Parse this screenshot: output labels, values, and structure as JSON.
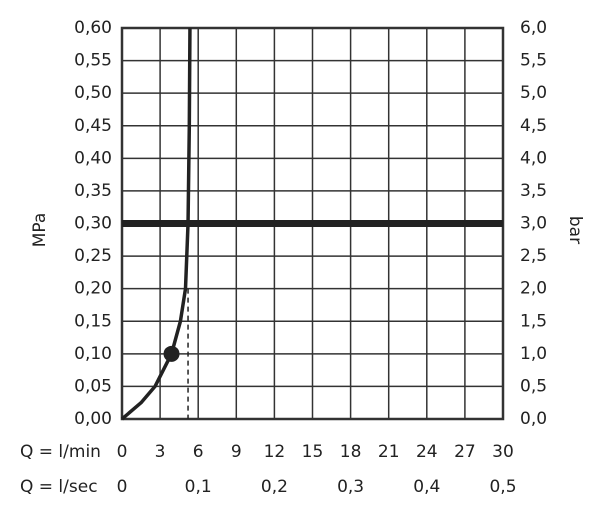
{
  "chart_data": {
    "type": "line",
    "x_label": "Q = l/min",
    "x2_label": "Q = l/sec",
    "y_label": "MPa",
    "y2_label": "bar",
    "x": [
      0,
      1.5,
      2.6,
      3.9,
      4.6,
      5.0,
      5.1,
      5.2,
      5.3,
      5.35
    ],
    "values": [
      0,
      0.025,
      0.05,
      0.1,
      0.15,
      0.2,
      0.25,
      0.3,
      0.45,
      0.6
    ],
    "color": "#222",
    "marker": {
      "x": 3.9,
      "y": 0.1
    },
    "reference_x": {
      "x": 5.2,
      "y": 0.2
    },
    "hline": 0.3,
    "xlim": [
      0,
      30
    ],
    "xticks": [
      0,
      3,
      6,
      9,
      12,
      15,
      18,
      21,
      24,
      27,
      30
    ],
    "x2lim": [
      0,
      0.5
    ],
    "x2ticks": [
      0,
      {
        "value": 0.1,
        "label": "0,1"
      },
      {
        "value": 0.2,
        "label": "0,2"
      },
      {
        "value": 0.3,
        "label": "0,3"
      },
      {
        "value": 0.4,
        "label": "0,4"
      },
      {
        "value": 0.5,
        "label": "0,5"
      }
    ],
    "ylim": [
      0,
      0.6
    ],
    "yticks": [
      {
        "value": 0,
        "label": "0,00"
      },
      {
        "value": 0.05,
        "label": "0,05"
      },
      {
        "value": 0.1,
        "label": "0,10"
      },
      {
        "value": 0.15,
        "label": "0,15"
      },
      {
        "value": 0.2,
        "label": "0,20"
      },
      {
        "value": 0.25,
        "label": "0,25"
      },
      {
        "value": 0.3,
        "label": "0,30"
      },
      {
        "value": 0.35,
        "label": "0,35"
      },
      {
        "value": 0.4,
        "label": "0,40"
      },
      {
        "value": 0.45,
        "label": "0,45"
      },
      {
        "value": 0.5,
        "label": "0,50"
      },
      {
        "value": 0.55,
        "label": "0,55"
      },
      {
        "value": 0.6,
        "label": "0,60"
      }
    ],
    "y2lim": [
      0,
      6
    ],
    "y2ticks": [
      {
        "value": 0,
        "label": "0,0"
      },
      {
        "value": 0.5,
        "label": "0,5"
      },
      {
        "value": 1,
        "label": "1,0"
      },
      {
        "value": 1.5,
        "label": "1,5"
      },
      {
        "value": 2,
        "label": "2,0"
      },
      {
        "value": 2.5,
        "label": "2,5"
      },
      {
        "value": 3,
        "label": "3,0"
      },
      {
        "value": 3.5,
        "label": "3,5"
      },
      {
        "value": 4,
        "label": "4,0"
      },
      {
        "value": 4.5,
        "label": "4,5"
      },
      {
        "value": 5,
        "label": "5,0"
      },
      {
        "value": 5.5,
        "label": "5,5"
      },
      {
        "value": 6,
        "label": "6,0"
      }
    ],
    "grid": true
  }
}
